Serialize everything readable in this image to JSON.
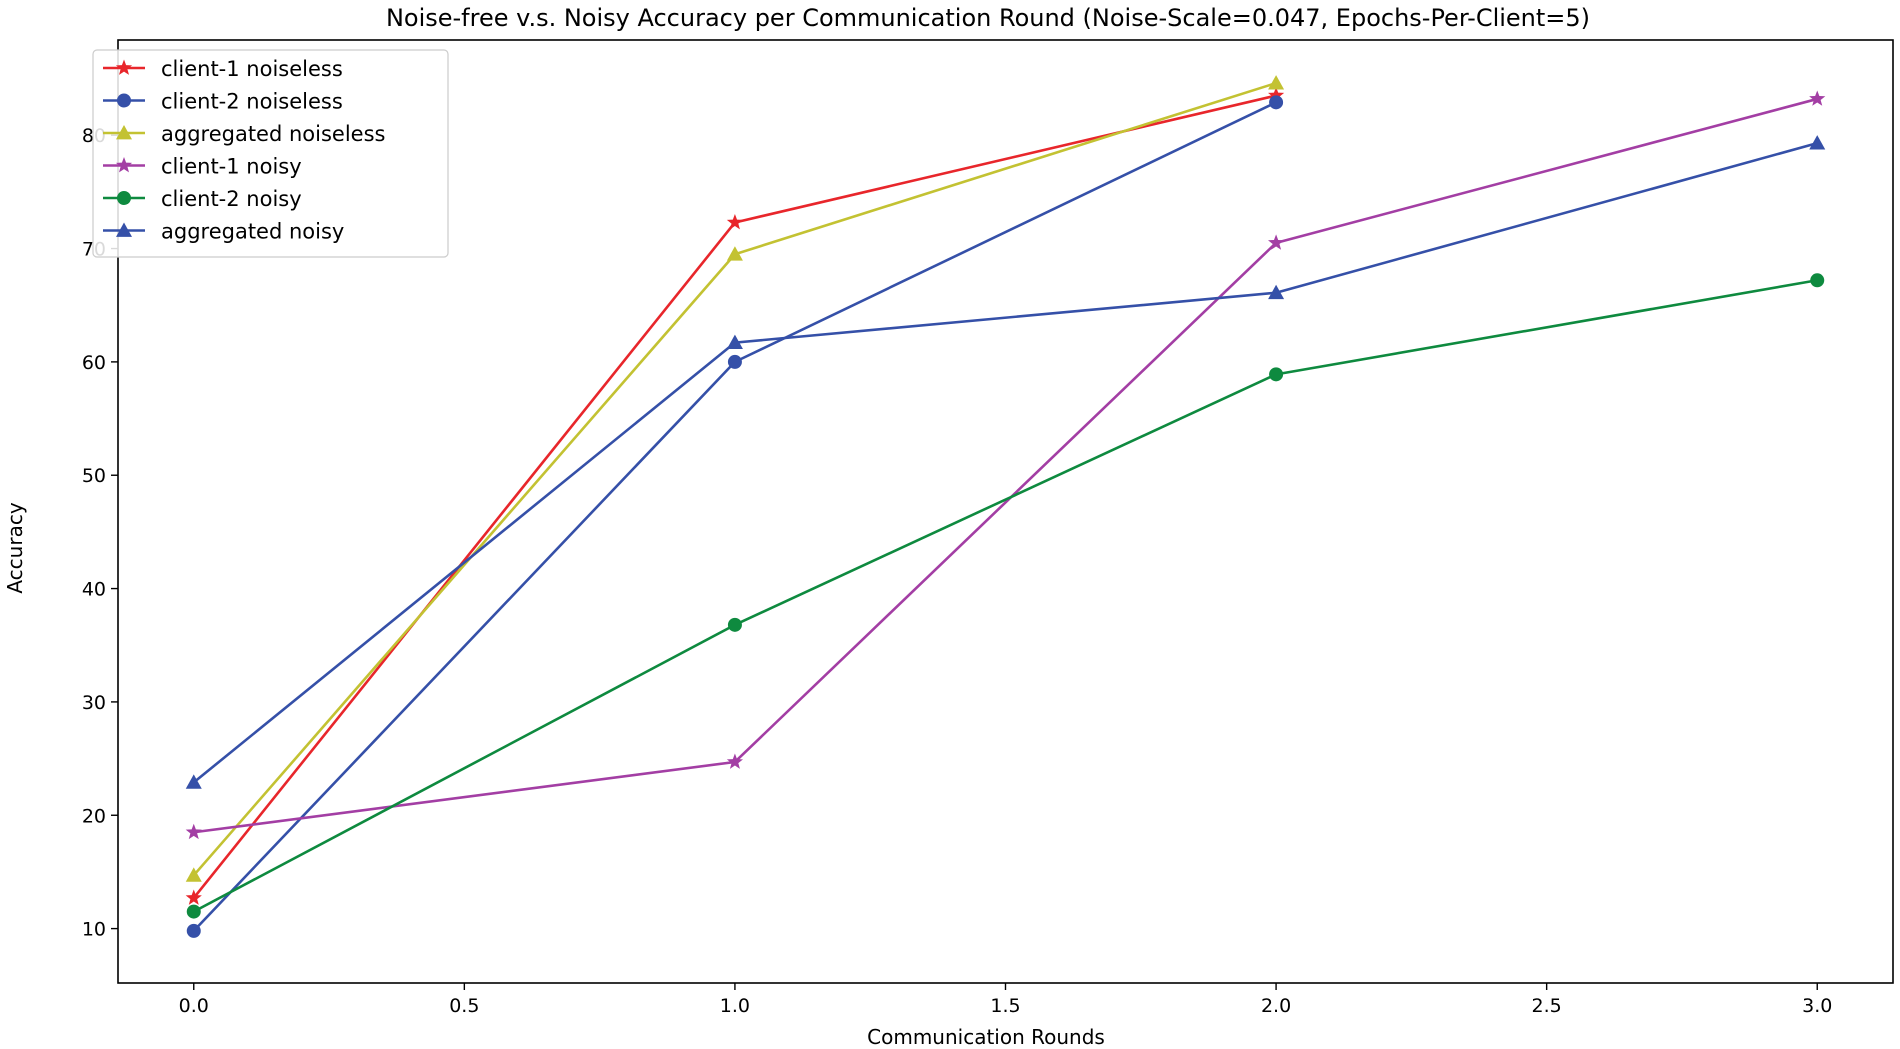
{
  "chart_data": {
    "type": "line",
    "title": "Noise-free v.s. Noisy Accuracy per Communication Round (Noise-Scale=0.047, Epochs-Per-Client=5)",
    "xlabel": "Communication Rounds",
    "ylabel": "Accuracy",
    "xlim": [
      -0.14,
      3.14
    ],
    "ylim": [
      5.2,
      88.4
    ],
    "xticks": [
      0.0,
      0.5,
      1.0,
      1.5,
      2.0,
      2.5,
      3.0
    ],
    "xtick_labels": [
      "0.0",
      "0.5",
      "1.0",
      "1.5",
      "2.0",
      "2.5",
      "3.0"
    ],
    "yticks": [
      10,
      20,
      30,
      40,
      50,
      60,
      70,
      80
    ],
    "ytick_labels": [
      "10",
      "20",
      "30",
      "40",
      "50",
      "60",
      "70",
      "80"
    ],
    "grid": false,
    "legend_position": "top-left",
    "series": [
      {
        "name": "client-1 noiseless",
        "color": "#e8262b",
        "marker": "star",
        "x": [
          0,
          1,
          2
        ],
        "values": [
          12.7,
          72.3,
          83.5
        ]
      },
      {
        "name": "client-2 noiseless",
        "color": "#3550a8",
        "marker": "circle",
        "x": [
          0,
          1,
          2
        ],
        "values": [
          9.8,
          60.0,
          82.9
        ]
      },
      {
        "name": "aggregated noiseless",
        "color": "#c3c232",
        "marker": "triangle",
        "x": [
          0,
          1,
          2
        ],
        "values": [
          14.7,
          69.5,
          84.6
        ]
      },
      {
        "name": "client-1 noisy",
        "color": "#a33ea4",
        "marker": "star",
        "x": [
          0,
          1,
          2,
          3
        ],
        "values": [
          18.5,
          24.7,
          70.5,
          83.2
        ]
      },
      {
        "name": "client-2 noisy",
        "color": "#0e8a3f",
        "marker": "circle",
        "x": [
          0,
          1,
          2,
          3
        ],
        "values": [
          11.5,
          36.8,
          58.9,
          67.2
        ]
      },
      {
        "name": "aggregated noisy",
        "color": "#3550a8",
        "marker": "triangle",
        "x": [
          0,
          1,
          2,
          3
        ],
        "values": [
          22.9,
          61.7,
          66.1,
          79.3
        ]
      }
    ]
  }
}
